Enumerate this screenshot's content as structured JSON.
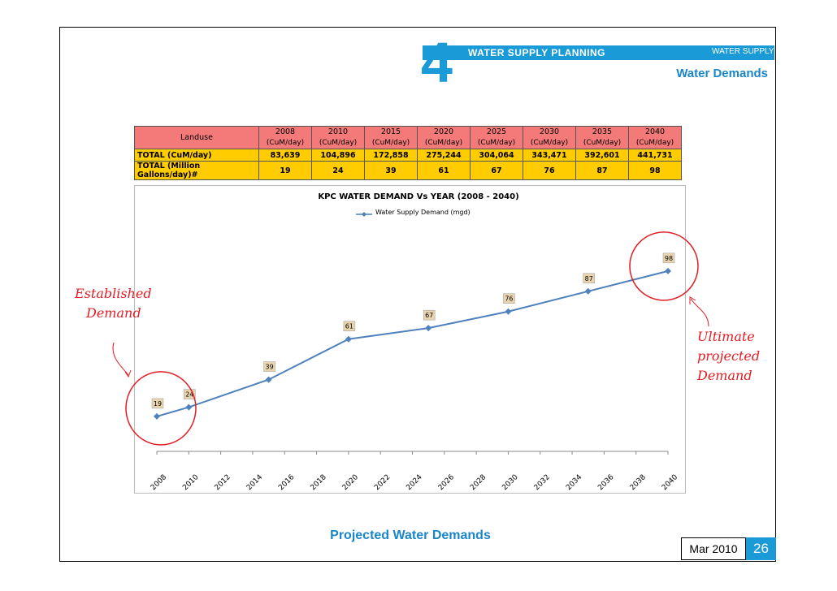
{
  "header": {
    "section_number": "4",
    "title": "WATER SUPPLY PLANNING",
    "right_label": "WATER SUPPLY",
    "subtitle": "Water Demands"
  },
  "table": {
    "landuse_label": "Landuse",
    "unit": "(CuM/day)",
    "years": [
      "2008",
      "2010",
      "2015",
      "2020",
      "2025",
      "2030",
      "2035",
      "2040"
    ],
    "rows": [
      {
        "label": "TOTAL (CuM/day)",
        "values": [
          "83,639",
          "104,896",
          "172,858",
          "275,244",
          "304,064",
          "343,471",
          "392,601",
          "441,731"
        ]
      },
      {
        "label": "TOTAL (Million Gallons/day)#",
        "values": [
          "19",
          "24",
          "39",
          "61",
          "67",
          "76",
          "87",
          "98"
        ]
      }
    ]
  },
  "chart_data": {
    "type": "line",
    "title": "KPC WATER DEMAND Vs YEAR (2008 - 2040)",
    "series": [
      {
        "name": "Water Supply Demand (mgd)",
        "x": [
          2008,
          2010,
          2015,
          2020,
          2025,
          2030,
          2035,
          2040
        ],
        "values": [
          19,
          24,
          39,
          61,
          67,
          76,
          87,
          98
        ],
        "labels": [
          "19",
          "24",
          "39",
          "61",
          "67",
          "76",
          "87",
          "98"
        ]
      }
    ],
    "x_ticks": [
      "2008",
      "2010",
      "2012",
      "2014",
      "2016",
      "2018",
      "2020",
      "2022",
      "2024",
      "2026",
      "2028",
      "2030",
      "2032",
      "2034",
      "2036",
      "2038",
      "2040"
    ],
    "xlim": [
      2008,
      2040
    ],
    "ylim": [
      0,
      120
    ],
    "legend": "top-center",
    "grid": false,
    "color": "#4f81bd"
  },
  "annotations": {
    "left": [
      "Established",
      "Demand"
    ],
    "right": [
      "Ultimate",
      "projected",
      "Demand"
    ]
  },
  "footer": {
    "caption": "Projected Water Demands",
    "date": "Mar 2010",
    "page": "26"
  }
}
